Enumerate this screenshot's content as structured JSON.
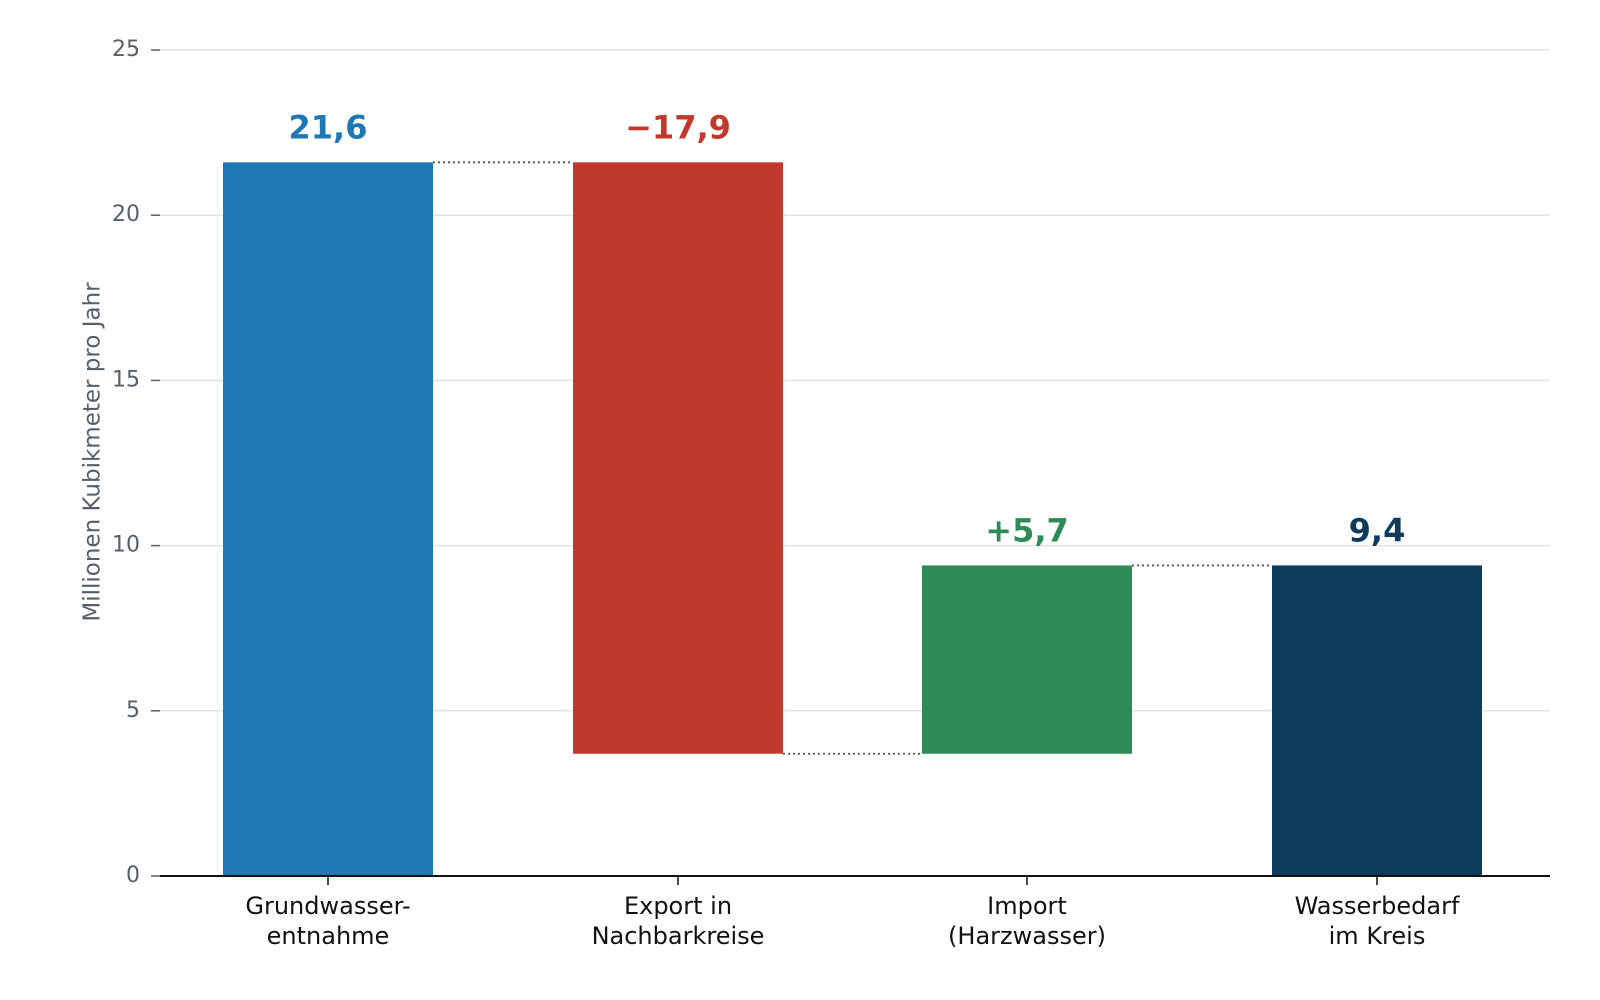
{
  "chart_data": {
    "type": "waterfall",
    "ylabel": "Millionen Kubikmeter pro Jahr",
    "ylim": [
      0,
      25
    ],
    "yticks": [
      0,
      5,
      10,
      15,
      20,
      25
    ],
    "grid": true,
    "legend": "none",
    "bars": [
      {
        "category_lines": [
          "Grundwasser-",
          "entnahme"
        ],
        "value": 21.6,
        "base": 0,
        "top": 21.6,
        "label": "21,6",
        "color": "#1f77b4"
      },
      {
        "category_lines": [
          "Export in",
          "Nachbarkreise"
        ],
        "value": -17.9,
        "base": 3.7,
        "top": 21.6,
        "label": "−17,9",
        "color": "#c0392b"
      },
      {
        "category_lines": [
          "Import",
          "(Harzwasser)"
        ],
        "value": 5.7,
        "base": 3.7,
        "top": 9.4,
        "label": "+5,7",
        "color": "#2e8b57"
      },
      {
        "category_lines": [
          "Wasserbedarf",
          "im Kreis"
        ],
        "value": 9.4,
        "base": 0,
        "top": 9.4,
        "label": "9,4",
        "color": "#0d3b5c"
      }
    ],
    "connectors": [
      {
        "from": 0,
        "to": 1,
        "level": 21.6
      },
      {
        "from": 1,
        "to": 2,
        "level": 3.7
      },
      {
        "from": 2,
        "to": 3,
        "level": 9.4
      }
    ]
  }
}
